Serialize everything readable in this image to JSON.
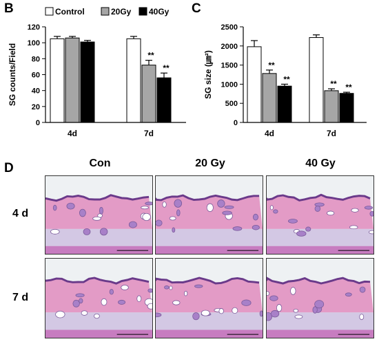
{
  "panel_letters": {
    "b": "B",
    "c": "C",
    "d": "D"
  },
  "chart_data": [
    {
      "type": "bar",
      "title": "",
      "xlabel": "",
      "ylabel": "SG counts/Field",
      "ylim": [
        0,
        120
      ],
      "yticks": [
        0,
        20,
        40,
        60,
        80,
        100,
        120
      ],
      "categories": [
        "4d",
        "7d"
      ],
      "series": [
        {
          "name": "Control",
          "color": "#ffffff",
          "values": [
            105,
            105
          ],
          "errors": [
            3,
            3
          ],
          "significance": [
            "",
            ""
          ]
        },
        {
          "name": "20Gy",
          "color": "#a6a6a6",
          "values": [
            106,
            72
          ],
          "errors": [
            2,
            6
          ],
          "significance": [
            "",
            "**"
          ]
        },
        {
          "name": "40Gy",
          "color": "#000000",
          "values": [
            101,
            56
          ],
          "errors": [
            2,
            6
          ],
          "significance": [
            "",
            "**"
          ]
        }
      ],
      "legend": "top"
    },
    {
      "type": "bar",
      "title": "",
      "xlabel": "",
      "ylabel": "SG size (㎛²)",
      "ylim": [
        0,
        2500
      ],
      "yticks": [
        0,
        500,
        1000,
        1500,
        2000,
        2500
      ],
      "categories": [
        "4d",
        "7d"
      ],
      "series": [
        {
          "name": "Control",
          "color": "#ffffff",
          "values": [
            1980,
            2220
          ],
          "errors": [
            160,
            70
          ],
          "significance": [
            "",
            ""
          ]
        },
        {
          "name": "20Gy",
          "color": "#a6a6a6",
          "values": [
            1280,
            830
          ],
          "errors": [
            90,
            50
          ],
          "significance": [
            "**",
            "**"
          ]
        },
        {
          "name": "40Gy",
          "color": "#000000",
          "values": [
            950,
            760
          ],
          "errors": [
            50,
            30
          ],
          "significance": [
            "**",
            "**"
          ]
        }
      ],
      "legend": "none"
    }
  ],
  "histology": {
    "columns": [
      "Con",
      "20 Gy",
      "40 Gy"
    ],
    "rows": [
      "4 d",
      "7 d"
    ]
  }
}
